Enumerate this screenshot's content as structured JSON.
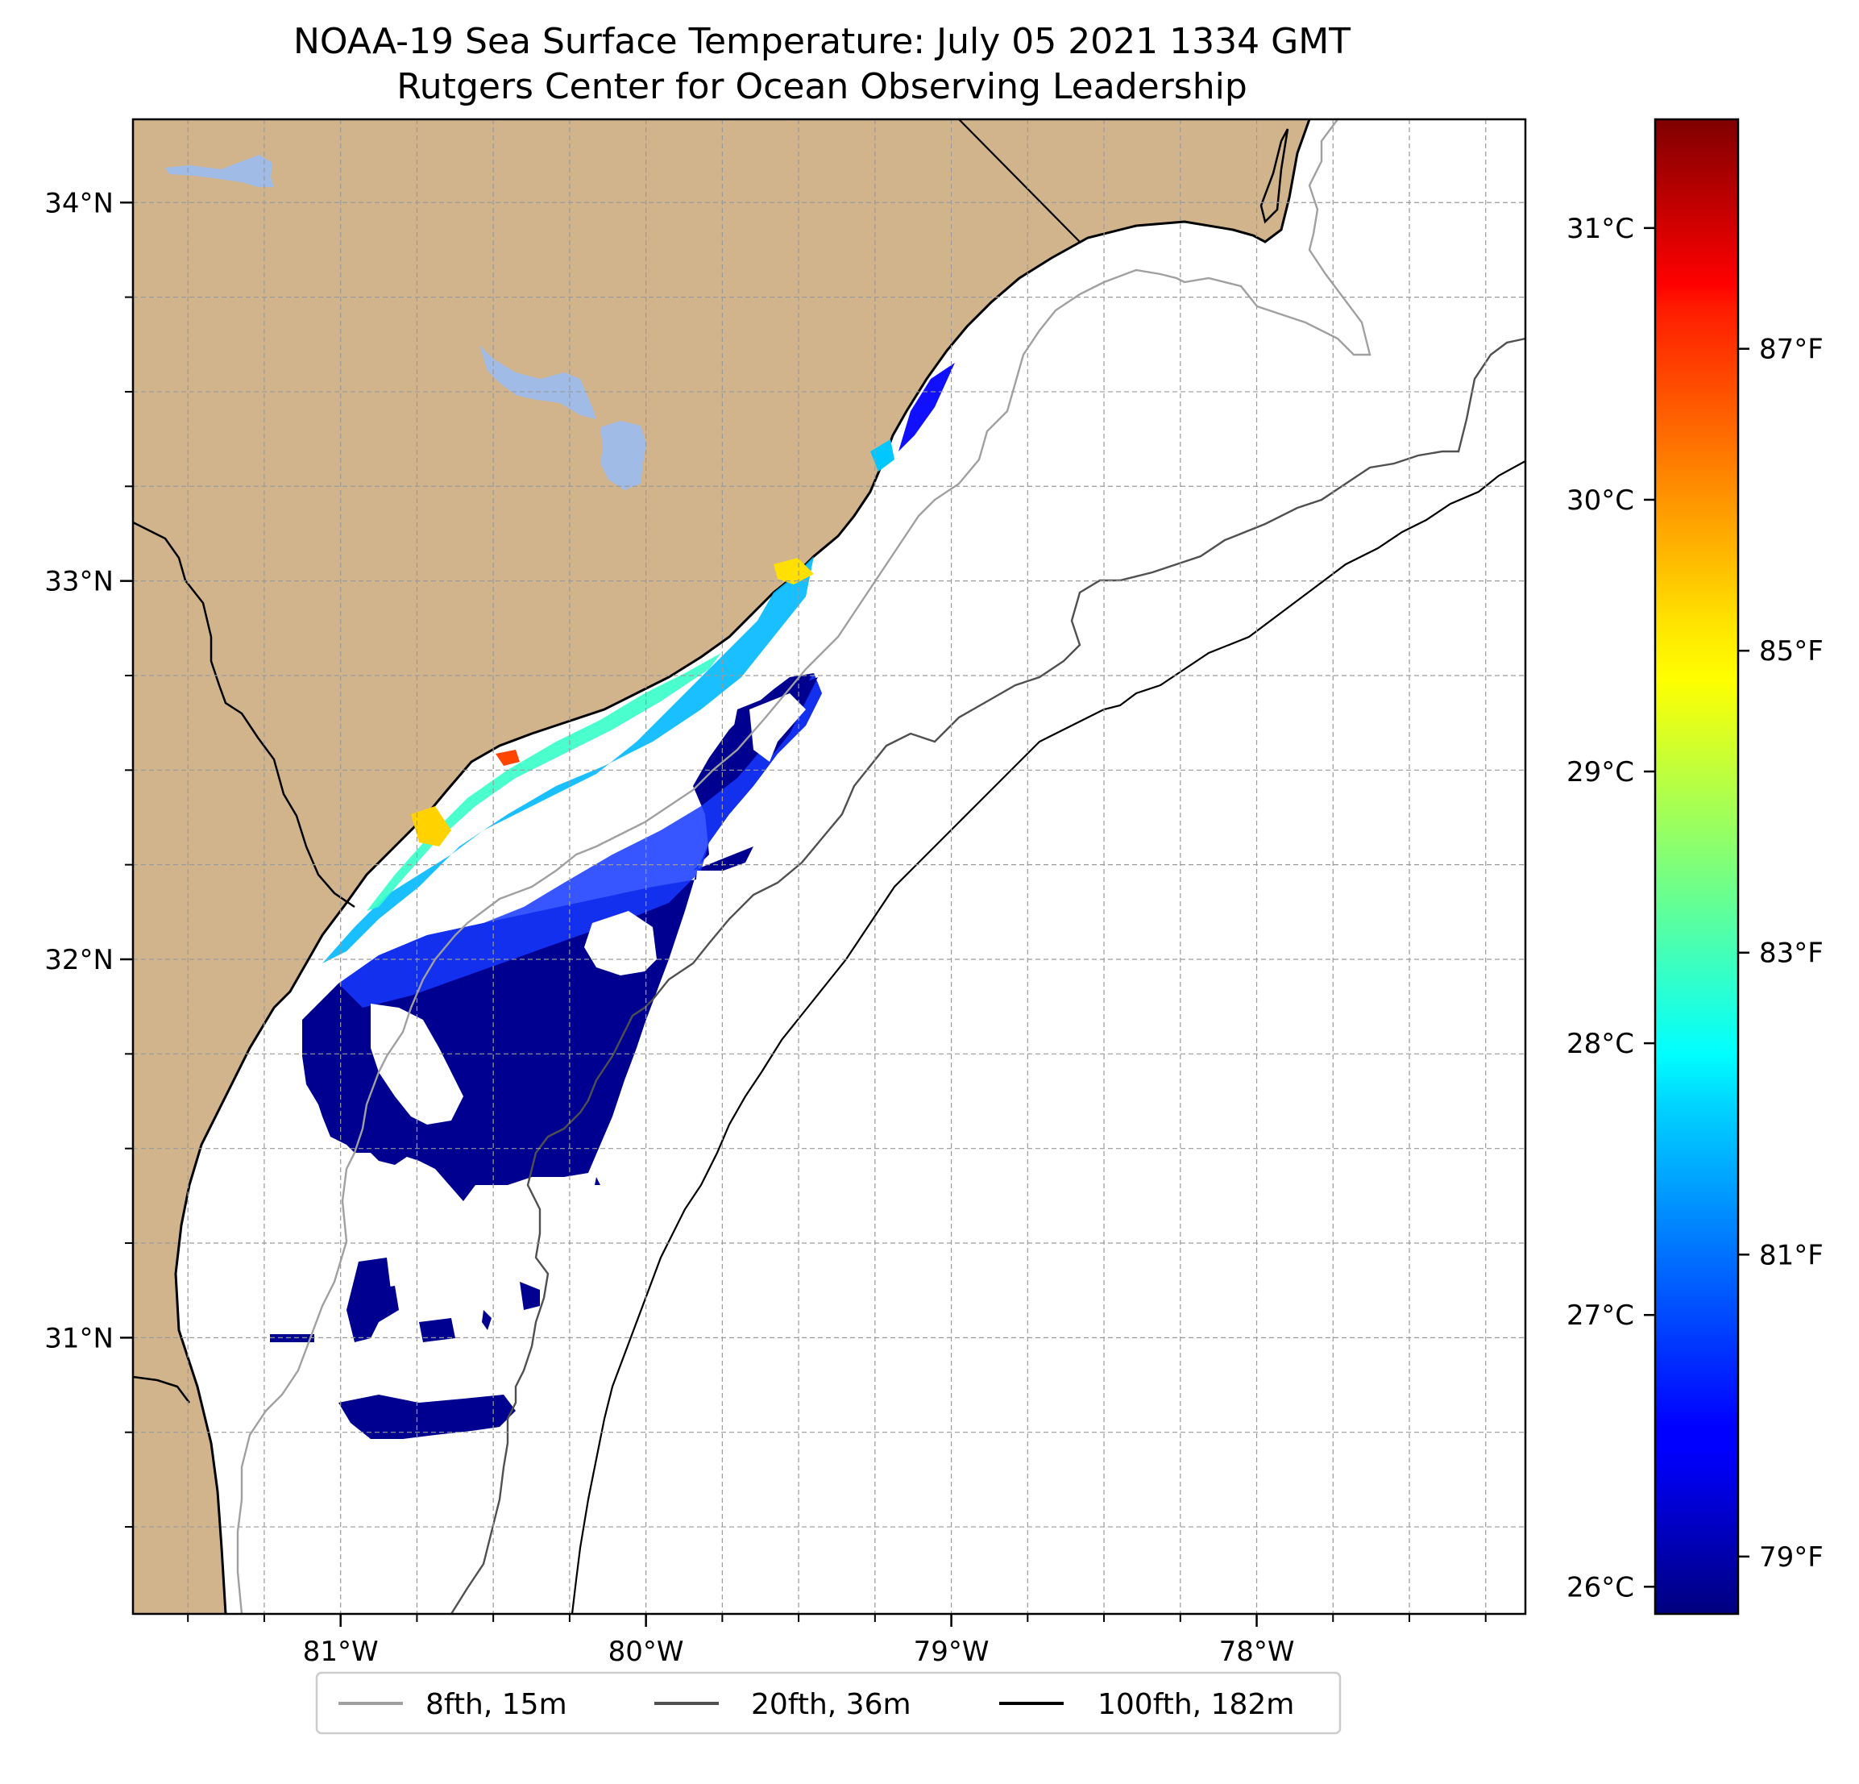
{
  "title": {
    "line1": "NOAA-19 Sea Surface Temperature: July 05 2021 1334 GMT",
    "line2": "Rutgers Center for Ocean Observing Leadership"
  },
  "map": {
    "extent": {
      "lon_min": -81.68,
      "lon_max": -77.12,
      "lat_min": 30.27,
      "lat_max": 34.22
    },
    "lat_ticks": [
      {
        "value": 34,
        "label": "34°N"
      },
      {
        "value": 33,
        "label": "33°N"
      },
      {
        "value": 32,
        "label": "32°N"
      },
      {
        "value": 31,
        "label": "31°N"
      }
    ],
    "lon_ticks": [
      {
        "value": -81,
        "label": "81°W"
      },
      {
        "value": -80,
        "label": "80°W"
      },
      {
        "value": -79,
        "label": "79°W"
      },
      {
        "value": -78,
        "label": "78°W"
      }
    ],
    "minor_grid_step": 0.25,
    "grid": true,
    "colors": {
      "land": "#d2b48c",
      "lakes": "#9fbbe6",
      "ocean": "#ffffff",
      "coastline": "#000000",
      "grid": "#b0b0b0"
    }
  },
  "colorbar": {
    "colormap": "jet",
    "range_c": [
      25.9,
      31.4
    ],
    "celsius_ticks": [
      {
        "value": 26,
        "label": "26°C"
      },
      {
        "value": 27,
        "label": "27°C"
      },
      {
        "value": 28,
        "label": "28°C"
      },
      {
        "value": 29,
        "label": "29°C"
      },
      {
        "value": 30,
        "label": "30°C"
      },
      {
        "value": 31,
        "label": "31°C"
      }
    ],
    "fahrenheit_ticks": [
      {
        "value": 79,
        "label": "79°F"
      },
      {
        "value": 81,
        "label": "81°F"
      },
      {
        "value": 83,
        "label": "83°F"
      },
      {
        "value": 85,
        "label": "85°F"
      },
      {
        "value": 87,
        "label": "87°F"
      }
    ]
  },
  "legend": {
    "placement": "bottom-center",
    "items": [
      {
        "label": "8fth, 15m",
        "color": "#a0a0a0"
      },
      {
        "label": "20fth, 36m",
        "color": "#505050"
      },
      {
        "label": "100fth, 182m",
        "color": "#000000"
      }
    ]
  }
}
